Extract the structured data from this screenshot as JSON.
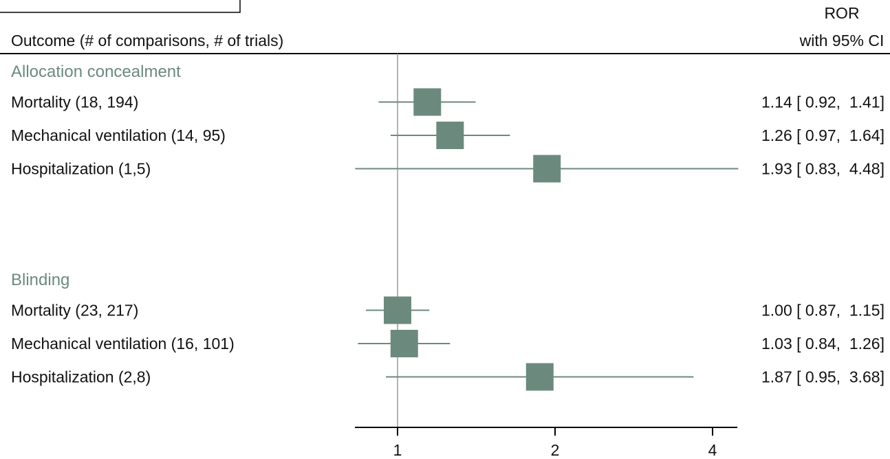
{
  "header": {
    "outcome_label": "Outcome (# of comparisons, # of trials)",
    "ror_label": "ROR",
    "ci_label": "with 95% CI"
  },
  "colors": {
    "marker": "#6b8a7d",
    "group_text": "#6b8a7d",
    "text": "#111111",
    "rule": "#000000",
    "refline": "#9a9a9a"
  },
  "chart_data": {
    "type": "forest",
    "x_scale": "log",
    "xlim": [
      0.77,
      5.0
    ],
    "reference_line": 1,
    "xticks": [
      1,
      2,
      4
    ],
    "xtick_labels": [
      "1",
      "2",
      "4"
    ],
    "groups": [
      {
        "name": "Allocation concealment",
        "rows": [
          {
            "label": "Mortality (18, 194)",
            "est": 1.14,
            "lo": 0.92,
            "hi": 1.41,
            "text": "1.14 [ 0.92,  1.41]"
          },
          {
            "label": "Mechanical ventilation (14, 95)",
            "est": 1.26,
            "lo": 0.97,
            "hi": 1.64,
            "text": "1.26 [ 0.97,  1.64]"
          },
          {
            "label": "Hospitalization (1,5)",
            "est": 1.93,
            "lo": 0.83,
            "hi": 4.48,
            "text": "1.93 [ 0.83,  4.48]"
          }
        ]
      },
      {
        "name": "Blinding",
        "rows": [
          {
            "label": "Mortality (23, 217)",
            "est": 1.0,
            "lo": 0.87,
            "hi": 1.15,
            "text": "1.00 [ 0.87,  1.15]"
          },
          {
            "label": "Mechanical ventilation (16, 101)",
            "est": 1.03,
            "lo": 0.84,
            "hi": 1.26,
            "text": "1.03 [ 0.84,  1.26]"
          },
          {
            "label": "Hospitalization (2,8)",
            "est": 1.87,
            "lo": 0.95,
            "hi": 3.68,
            "text": "1.87 [ 0.95,  3.68]"
          }
        ]
      }
    ]
  }
}
